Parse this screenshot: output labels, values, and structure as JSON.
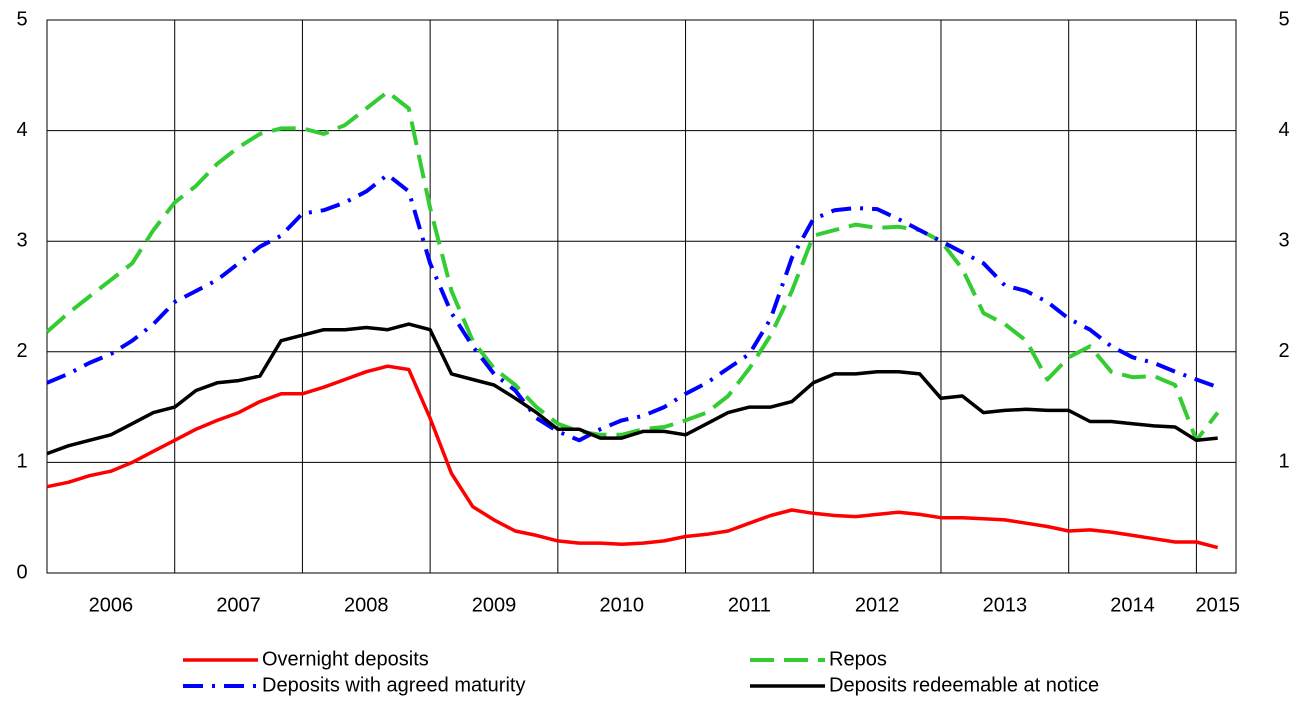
{
  "chart_data": {
    "type": "line",
    "x": [
      2006,
      2006.167,
      2006.333,
      2006.5,
      2006.667,
      2006.833,
      2007,
      2007.167,
      2007.333,
      2007.5,
      2007.667,
      2007.833,
      2008,
      2008.167,
      2008.333,
      2008.5,
      2008.667,
      2008.833,
      2009,
      2009.167,
      2009.333,
      2009.5,
      2009.667,
      2009.833,
      2010,
      2010.167,
      2010.333,
      2010.5,
      2010.667,
      2010.833,
      2011,
      2011.167,
      2011.333,
      2011.5,
      2011.667,
      2011.833,
      2012,
      2012.167,
      2012.333,
      2012.5,
      2012.667,
      2012.833,
      2013,
      2013.167,
      2013.333,
      2013.5,
      2013.667,
      2013.833,
      2014,
      2014.167,
      2014.333,
      2014.5,
      2014.667,
      2014.833,
      2015,
      2015.167
    ],
    "series": [
      {
        "name": "Overnight deposits",
        "color": "#ff0000",
        "style": "solid",
        "values": [
          0.78,
          0.82,
          0.88,
          0.92,
          1.0,
          1.1,
          1.2,
          1.3,
          1.38,
          1.45,
          1.55,
          1.62,
          1.62,
          1.68,
          1.75,
          1.82,
          1.87,
          1.84,
          1.4,
          0.9,
          0.6,
          0.48,
          0.38,
          0.34,
          0.29,
          0.27,
          0.27,
          0.26,
          0.27,
          0.29,
          0.33,
          0.35,
          0.38,
          0.45,
          0.52,
          0.57,
          0.54,
          0.52,
          0.51,
          0.53,
          0.55,
          0.53,
          0.5,
          0.5,
          0.49,
          0.48,
          0.45,
          0.42,
          0.38,
          0.39,
          0.37,
          0.34,
          0.31,
          0.28,
          0.28,
          0.23
        ]
      },
      {
        "name": "Repos",
        "color": "#33cc33",
        "style": "dash",
        "values": [
          2.18,
          2.35,
          2.5,
          2.65,
          2.8,
          3.1,
          3.35,
          3.5,
          3.7,
          3.85,
          3.97,
          4.02,
          4.02,
          3.97,
          4.05,
          4.2,
          4.35,
          4.2,
          3.3,
          2.55,
          2.1,
          1.85,
          1.7,
          1.5,
          1.35,
          1.28,
          1.25,
          1.25,
          1.3,
          1.32,
          1.38,
          1.45,
          1.6,
          1.85,
          2.15,
          2.55,
          3.05,
          3.1,
          3.15,
          3.12,
          3.13,
          3.1,
          3.0,
          2.75,
          2.35,
          2.25,
          2.1,
          1.75,
          1.95,
          2.05,
          1.82,
          1.77,
          1.78,
          1.7,
          1.2,
          1.45
        ]
      },
      {
        "name": "Deposits with agreed maturity",
        "color": "#0000ff",
        "style": "dashdot",
        "values": [
          1.72,
          1.8,
          1.9,
          1.98,
          2.1,
          2.25,
          2.45,
          2.55,
          2.65,
          2.8,
          2.95,
          3.05,
          3.25,
          3.28,
          3.35,
          3.45,
          3.6,
          3.45,
          2.8,
          2.35,
          2.05,
          1.8,
          1.65,
          1.4,
          1.28,
          1.2,
          1.3,
          1.38,
          1.42,
          1.5,
          1.62,
          1.72,
          1.85,
          1.98,
          2.3,
          2.85,
          3.2,
          3.28,
          3.3,
          3.29,
          3.2,
          3.1,
          3.0,
          2.9,
          2.8,
          2.6,
          2.55,
          2.45,
          2.3,
          2.2,
          2.05,
          1.95,
          1.9,
          1.82,
          1.75,
          1.68
        ]
      },
      {
        "name": "Deposits redeemable at notice",
        "color": "#000000",
        "style": "solid",
        "values": [
          1.08,
          1.15,
          1.2,
          1.25,
          1.35,
          1.45,
          1.5,
          1.65,
          1.72,
          1.74,
          1.78,
          2.1,
          2.15,
          2.2,
          2.2,
          2.22,
          2.2,
          2.25,
          2.2,
          1.8,
          1.75,
          1.7,
          1.58,
          1.45,
          1.3,
          1.3,
          1.22,
          1.22,
          1.28,
          1.28,
          1.25,
          1.35,
          1.45,
          1.5,
          1.5,
          1.55,
          1.72,
          1.8,
          1.8,
          1.82,
          1.82,
          1.8,
          1.58,
          1.6,
          1.45,
          1.47,
          1.48,
          1.47,
          1.47,
          1.37,
          1.37,
          1.35,
          1.33,
          1.32,
          1.2,
          1.22
        ]
      }
    ],
    "xlim": [
      2006,
      2015.31
    ],
    "xticks": [
      {
        "value": 2006.5,
        "label": "2006"
      },
      {
        "value": 2007.5,
        "label": "2007"
      },
      {
        "value": 2008.5,
        "label": "2008"
      },
      {
        "value": 2009.5,
        "label": "2009"
      },
      {
        "value": 2010.5,
        "label": "2010"
      },
      {
        "value": 2011.5,
        "label": "2011"
      },
      {
        "value": 2012.5,
        "label": "2012"
      },
      {
        "value": 2013.5,
        "label": "2013"
      },
      {
        "value": 2014.5,
        "label": "2014"
      },
      {
        "value": 2015.167,
        "label": "2015"
      }
    ],
    "xgrid": [
      2007,
      2008,
      2009,
      2010,
      2011,
      2012,
      2013,
      2014,
      2015
    ],
    "ylim": [
      0,
      5
    ],
    "yticks": [
      0,
      1,
      2,
      3,
      4,
      5
    ],
    "y2lim": [
      0,
      5
    ],
    "y2ticks": [
      1,
      2,
      3,
      4,
      5
    ],
    "grid": true
  }
}
